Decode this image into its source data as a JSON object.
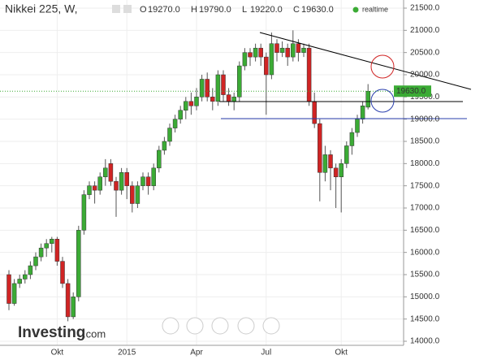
{
  "chart_data": {
    "type": "candlestick",
    "title": "Nikkei 225, W,",
    "status": "realtime",
    "header": [
      {
        "key": "O",
        "value": "19270.0"
      },
      {
        "key": "H",
        "value": "19790.0"
      },
      {
        "key": "L",
        "value": "19220.0"
      },
      {
        "key": "C",
        "value": "19630.0"
      }
    ],
    "watermark": "Investing",
    "watermark_suffix": ".com",
    "categories": [
      null,
      null,
      null,
      null,
      null,
      null,
      null,
      null,
      null,
      "Okt",
      null,
      null,
      null,
      null,
      null,
      null,
      null,
      null,
      null,
      null,
      null,
      null,
      "2015",
      null,
      null,
      null,
      null,
      null,
      null,
      null,
      null,
      null,
      null,
      null,
      null,
      "Apr",
      null,
      null,
      null,
      null,
      null,
      null,
      null,
      null,
      null,
      null,
      null,
      null,
      "Jul",
      null,
      null,
      null,
      null,
      null,
      null,
      null,
      null,
      null,
      null,
      null,
      null,
      null,
      "Okt",
      null,
      null,
      null,
      null,
      null
    ],
    "open": [
      15500,
      14850,
      15300,
      15400,
      15500,
      15700,
      15900,
      16100,
      16200,
      16300,
      15800,
      15300,
      14550,
      15000,
      16500,
      17300,
      17500,
      17400,
      17700,
      18000,
      17600,
      17400,
      17800,
      17500,
      17100,
      17500,
      17700,
      17500,
      17900,
      18300,
      18500,
      18800,
      19000,
      19200,
      19400,
      19300,
      19500,
      19900,
      19500,
      19400,
      20000,
      19550,
      19400,
      19500,
      20200,
      20500,
      20400,
      20600,
      20400,
      20000,
      20700,
      20500,
      20600,
      20400,
      20700,
      20500,
      20600,
      19400,
      18900,
      17800,
      18200,
      17900,
      17700,
      18000,
      18400,
      18700,
      19000,
      19270
    ],
    "high": [
      15600,
      15400,
      15500,
      15600,
      15800,
      16000,
      16200,
      16300,
      16350,
      16350,
      15900,
      15400,
      15100,
      16600,
      17400,
      17600,
      17600,
      17800,
      18100,
      18100,
      17700,
      17900,
      17900,
      17600,
      17600,
      17800,
      17800,
      18000,
      18400,
      18600,
      18900,
      19100,
      19300,
      19500,
      19600,
      19700,
      20000,
      20050,
      19700,
      20100,
      20100,
      19700,
      19600,
      20300,
      20600,
      20600,
      20700,
      20700,
      20500,
      20950,
      20800,
      20750,
      20700,
      21000,
      20800,
      20700,
      20700,
      19600,
      19000,
      18400,
      18300,
      18000,
      18100,
      18500,
      18800,
      19100,
      19400,
      19790
    ],
    "low": [
      14700,
      14800,
      15200,
      15300,
      15400,
      15600,
      15800,
      15900,
      16000,
      15700,
      15200,
      14450,
      14500,
      14900,
      16400,
      17200,
      17100,
      17300,
      17500,
      17500,
      16800,
      17300,
      17200,
      16900,
      17000,
      17400,
      17300,
      17400,
      17800,
      18200,
      18400,
      18700,
      18900,
      19000,
      19100,
      19200,
      19400,
      19400,
      19200,
      19300,
      19400,
      19300,
      19200,
      19400,
      20100,
      20200,
      20300,
      20200,
      19100,
      19900,
      20300,
      20400,
      20200,
      20300,
      20300,
      20400,
      19300,
      18800,
      17150,
      17600,
      17400,
      17000,
      16900,
      17900,
      18200,
      18600,
      18900,
      19220
    ],
    "close": [
      14850,
      15300,
      15400,
      15500,
      15700,
      15900,
      16100,
      16200,
      16300,
      15800,
      15300,
      14550,
      15000,
      16500,
      17300,
      17500,
      17400,
      17700,
      17900,
      17600,
      17400,
      17800,
      17500,
      17100,
      17500,
      17700,
      17500,
      17900,
      18300,
      18500,
      18800,
      19000,
      19200,
      19400,
      19300,
      19500,
      19900,
      19500,
      19400,
      20000,
      19550,
      19400,
      19500,
      20200,
      20500,
      20400,
      20600,
      20400,
      20000,
      20700,
      20500,
      20600,
      20400,
      20700,
      20500,
      20600,
      19400,
      18900,
      17800,
      18200,
      17900,
      17700,
      18000,
      18400,
      18700,
      19000,
      19300,
      19630
    ],
    "last_value": 19630,
    "last_value_label": "19630.0",
    "up_color": "#3bab35",
    "down_color": "#d02424",
    "ylim": [
      14000,
      21500
    ],
    "yticks": [
      {
        "value": 14000,
        "label": "14000.0"
      },
      {
        "value": 14500,
        "label": "14500.0"
      },
      {
        "value": 15000,
        "label": "15000.0"
      },
      {
        "value": 15500,
        "label": "15500.0"
      },
      {
        "value": 16000,
        "label": "16000.0"
      },
      {
        "value": 16500,
        "label": "16500.0"
      },
      {
        "value": 17000,
        "label": "17000.0"
      },
      {
        "value": 17500,
        "label": "17500.0"
      },
      {
        "value": 18000,
        "label": "18000.0"
      },
      {
        "value": 18500,
        "label": "18500.0"
      },
      {
        "value": 19000,
        "label": "19000.0"
      },
      {
        "value": 19500,
        "label": "19500.0"
      },
      {
        "value": 20000,
        "label": "20000.0"
      },
      {
        "value": 20500,
        "label": "20500.0"
      },
      {
        "value": 21000,
        "label": "21000.0"
      },
      {
        "value": 21500,
        "label": "21500.0"
      }
    ],
    "grid": true
  }
}
